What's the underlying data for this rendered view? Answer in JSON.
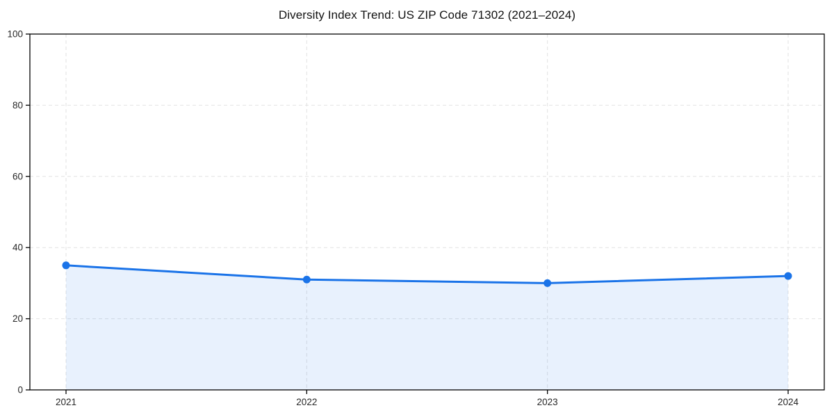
{
  "chart_data": {
    "type": "line",
    "title": "Diversity Index Trend: US ZIP Code 71302 (2021–2024)",
    "categories": [
      "2021",
      "2022",
      "2023",
      "2024"
    ],
    "series": [
      {
        "name": "Diversity Index",
        "values": [
          35,
          31,
          30,
          32
        ]
      }
    ],
    "xlabel": "",
    "ylabel": "",
    "ylim": [
      0,
      100
    ],
    "yticks": [
      0,
      20,
      40,
      60,
      80,
      100
    ],
    "grid": "dashed both",
    "legend_position": "none",
    "colors": {
      "line": "#1a73e8",
      "marker": "#1a73e8",
      "area_fill": "rgba(26,115,232,0.10)",
      "gridline": "#e2e2e2",
      "spine": "#000000",
      "tick_label": "#262626",
      "background": "#ffffff"
    }
  }
}
